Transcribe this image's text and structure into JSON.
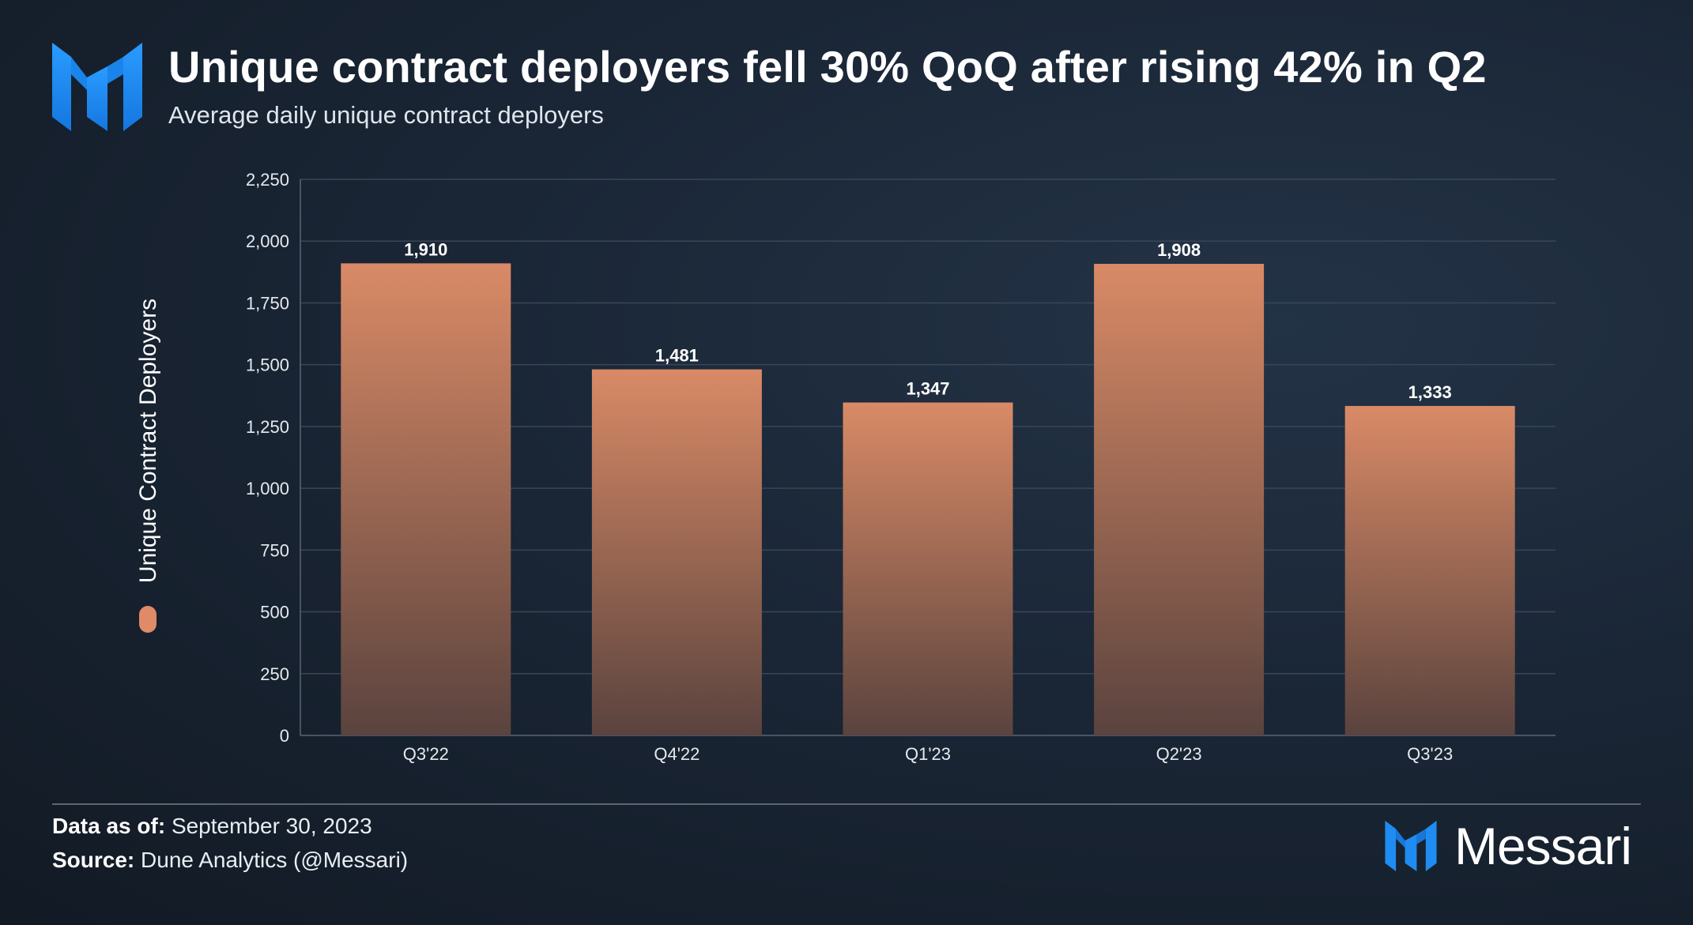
{
  "header": {
    "title": "Unique contract deployers fell 30% QoQ after rising 42% in Q2",
    "subtitle": "Average daily unique contract deployers"
  },
  "footer": {
    "data_as_of_label": "Data as of:",
    "data_as_of_value": "September 30, 2023",
    "source_label": "Source:",
    "source_value": "Dune Analytics (@Messari)"
  },
  "brand": {
    "name": "Messari",
    "mark_icon": "messari-logo-icon",
    "mark_color": "#1f8cf2"
  },
  "colors": {
    "bar_top": "#d98a66",
    "bar_bottom": "#5a433e",
    "legend_swatch": "#e08a68",
    "grid": "#3a4655",
    "tick_text": "#e6eaef"
  },
  "chart_data": {
    "type": "bar",
    "title": "Unique contract deployers fell 30% QoQ after rising 42% in Q2",
    "subtitle": "Average daily unique contract deployers",
    "xlabel": "",
    "ylabel": "Unique Contract Deployers",
    "categories": [
      "Q3'22",
      "Q4'22",
      "Q1'23",
      "Q2'23",
      "Q3'23"
    ],
    "series": [
      {
        "name": "Unique Contract Deployers",
        "values": [
          1910,
          1481,
          1347,
          1908,
          1333
        ],
        "labels": [
          "1,910",
          "1,481",
          "1,347",
          "1,908",
          "1,333"
        ]
      }
    ],
    "ylim": [
      0,
      2250
    ],
    "yticks": [
      0,
      250,
      500,
      750,
      1000,
      1250,
      1500,
      1750,
      2000,
      2250
    ],
    "ytick_labels": [
      "0",
      "250",
      "500",
      "750",
      "1,000",
      "1,250",
      "1,500",
      "1,750",
      "2,000",
      "2,250"
    ],
    "grid": true,
    "legend": "left-vertical"
  }
}
